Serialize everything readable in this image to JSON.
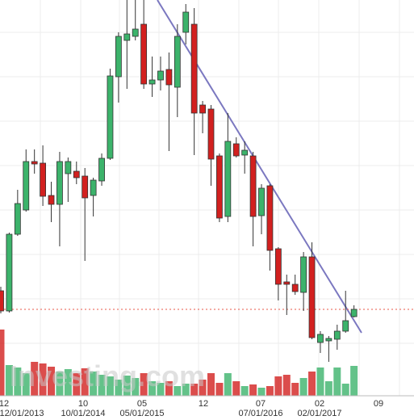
{
  "chart_data": {
    "type": "candlestick",
    "watermark": "Investing.com",
    "x_labels_top": [
      "12",
      "10",
      "05",
      "12",
      "07",
      "02",
      "09"
    ],
    "x_labels_bottom": [
      "12/01/2013",
      "10/01/2014",
      "05/01/2015",
      "07/01/2016",
      "02/01/2017"
    ],
    "up_color": "#3cb36b",
    "down_color": "#d2201f",
    "open": [
      140,
      115,
      210,
      240,
      300,
      298,
      258,
      247,
      285,
      288,
      282,
      258,
      276,
      304,
      405,
      450,
      455,
      470,
      396,
      401,
      414,
      392,
      460,
      470,
      370,
      365,
      307,
      232,
      322,
      308,
      307,
      233,
      270,
      192,
      151,
      148,
      138,
      182,
      76,
      78,
      80,
      90,
      108
    ],
    "high": [
      145,
      212,
      265,
      315,
      315,
      320,
      275,
      312,
      305,
      300,
      292,
      280,
      310,
      415,
      460,
      500,
      500,
      500,
      430,
      430,
      435,
      470,
      495,
      490,
      375,
      370,
      310,
      360,
      330,
      325,
      312,
      272,
      272,
      194,
      160,
      160,
      188,
      200,
      90,
      84,
      98,
      140,
      122
    ],
    "low": [
      112,
      113,
      208,
      238,
      285,
      245,
      225,
      195,
      250,
      272,
      177,
      232,
      270,
      302,
      373,
      390,
      450,
      390,
      380,
      388,
      313,
      355,
      445,
      308,
      335,
      270,
      225,
      225,
      305,
      285,
      195,
      210,
      165,
      128,
      110,
      135,
      115,
      80,
      63,
      52,
      67,
      88,
      107
    ],
    "close": [
      115,
      210,
      248,
      300,
      297,
      257,
      247,
      300,
      300,
      280,
      255,
      277,
      304,
      406,
      455,
      458,
      464,
      396,
      401,
      412,
      395,
      455,
      485,
      360,
      360,
      303,
      230,
      325,
      307,
      314,
      232,
      267,
      190,
      148,
      148,
      139,
      182,
      82,
      86,
      81,
      90,
      103,
      117
    ],
    "volume": [
      82,
      38,
      35,
      28,
      42,
      40,
      36,
      30,
      33,
      28,
      34,
      30,
      26,
      24,
      20,
      25,
      22,
      28,
      18,
      16,
      18,
      12,
      15,
      15,
      20,
      28,
      16,
      28,
      18,
      12,
      14,
      10,
      12,
      24,
      26,
      16,
      22,
      30,
      35,
      18,
      35,
      15,
      37
    ]
  }
}
